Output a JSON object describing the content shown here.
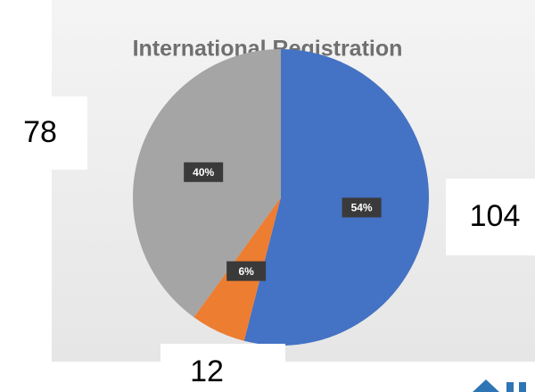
{
  "chart_data": {
    "type": "pie",
    "title": "International Registration",
    "values": [
      54,
      6,
      40
    ],
    "value_labels": [
      "54%",
      "6%",
      "40%"
    ],
    "colors": [
      "#4472c4",
      "#ed7d31",
      "#a5a5a5"
    ],
    "counts": [
      104,
      12,
      78
    ]
  }
}
